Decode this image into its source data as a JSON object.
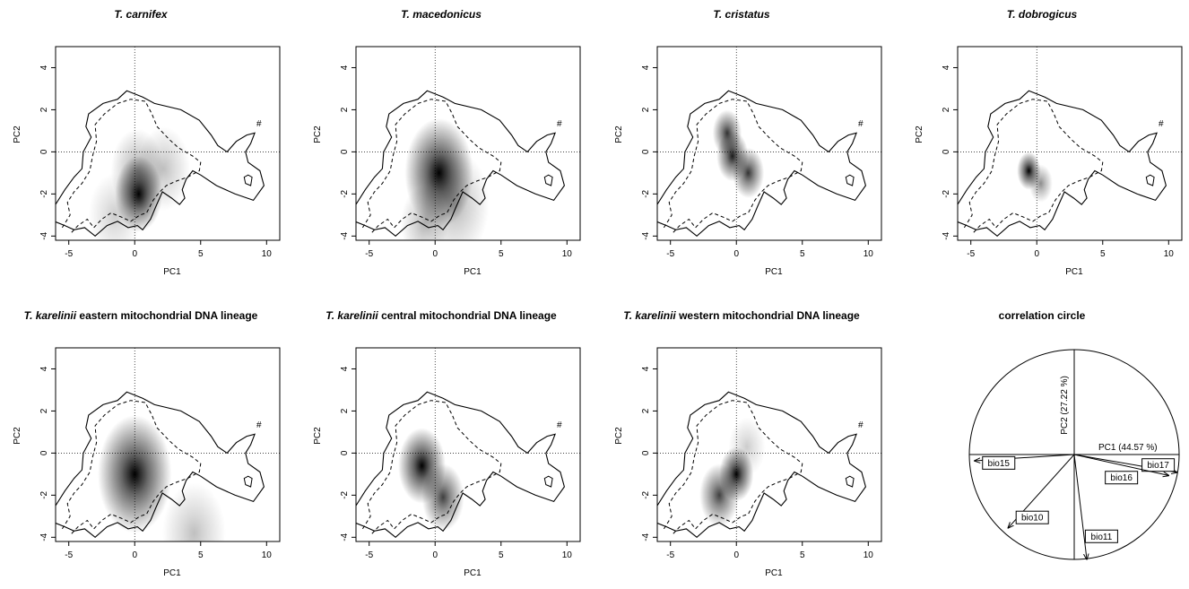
{
  "colors": {
    "ink": "#000000",
    "density": "#000000",
    "background": "#ffffff"
  },
  "axis_labels": {
    "x": "PC1",
    "y": "PC2"
  },
  "chart_data": [
    {
      "type": "heatmap",
      "title_italic": "T. carnifex",
      "title_rest": "",
      "xlabel": "PC1",
      "ylabel": "PC2",
      "xlim": [
        -6,
        11
      ],
      "ylim": [
        -4.2,
        5
      ],
      "xticks": [
        "-5",
        "0",
        "5",
        "10"
      ],
      "yticks": [
        "-4",
        "-2",
        "0",
        "2",
        "4"
      ],
      "reference_lines": {
        "x": 0,
        "y": 0,
        "style": "dotted"
      },
      "density_peaks": [
        {
          "x": 0.3,
          "y": -2.0,
          "spread": 0.9,
          "weight": 1.0
        },
        {
          "x": 0.2,
          "y": -0.9,
          "spread": 1.0,
          "weight": 0.35
        },
        {
          "x": 2.2,
          "y": -0.8,
          "spread": 1.0,
          "weight": 0.25
        },
        {
          "x": -1.5,
          "y": -3.0,
          "spread": 1.0,
          "weight": 0.2
        }
      ]
    },
    {
      "type": "heatmap",
      "title_italic": "T. macedonicus",
      "title_rest": "",
      "xlabel": "PC1",
      "ylabel": "PC2",
      "xlim": [
        -6,
        11
      ],
      "ylim": [
        -4.2,
        5
      ],
      "xticks": [
        "-5",
        "0",
        "5",
        "10"
      ],
      "yticks": [
        "-4",
        "-2",
        "0",
        "2",
        "4"
      ],
      "reference_lines": {
        "x": 0,
        "y": 0,
        "style": "dotted"
      },
      "density_peaks": [
        {
          "x": 0.3,
          "y": -1.0,
          "spread": 1.3,
          "weight": 1.0
        },
        {
          "x": 1.5,
          "y": -2.5,
          "spread": 1.3,
          "weight": 0.3
        },
        {
          "x": -0.8,
          "y": -3.4,
          "spread": 0.9,
          "weight": 0.3
        }
      ]
    },
    {
      "type": "heatmap",
      "title_italic": "T. cristatus",
      "title_rest": "",
      "xlabel": "PC1",
      "ylabel": "PC2",
      "xlim": [
        -6,
        11
      ],
      "ylim": [
        -4.2,
        5
      ],
      "xticks": [
        "-5",
        "0",
        "5",
        "10"
      ],
      "yticks": [
        "-4",
        "-2",
        "0",
        "2",
        "4"
      ],
      "reference_lines": {
        "x": 0,
        "y": 0,
        "style": "dotted"
      },
      "density_peaks": [
        {
          "x": -0.7,
          "y": 0.9,
          "spread": 0.55,
          "weight": 0.8
        },
        {
          "x": -0.3,
          "y": -0.2,
          "spread": 0.6,
          "weight": 0.9
        },
        {
          "x": 0.9,
          "y": -1.0,
          "spread": 0.6,
          "weight": 0.8
        }
      ]
    },
    {
      "type": "heatmap",
      "title_italic": "T. dobrogicus",
      "title_rest": "",
      "xlabel": "PC1",
      "ylabel": "PC2",
      "xlim": [
        -6,
        11
      ],
      "ylim": [
        -4.2,
        5
      ],
      "xticks": [
        "-5",
        "0",
        "5",
        "10"
      ],
      "yticks": [
        "-4",
        "-2",
        "0",
        "2",
        "4"
      ],
      "reference_lines": {
        "x": 0,
        "y": 0,
        "style": "dotted"
      },
      "density_peaks": [
        {
          "x": -0.6,
          "y": -0.9,
          "spread": 0.45,
          "weight": 1.0
        },
        {
          "x": 0.3,
          "y": -1.5,
          "spread": 0.45,
          "weight": 0.45
        }
      ]
    },
    {
      "type": "heatmap",
      "title_italic": "T. karelinii",
      "title_rest": " eastern mitochondrial DNA lineage",
      "xlabel": "PC1",
      "ylabel": "PC2",
      "xlim": [
        -6,
        11
      ],
      "ylim": [
        -4.2,
        5
      ],
      "xticks": [
        "-5",
        "0",
        "5",
        "10"
      ],
      "yticks": [
        "-4",
        "-2",
        "0",
        "2",
        "4"
      ],
      "reference_lines": {
        "x": 0,
        "y": 0,
        "style": "dotted"
      },
      "density_peaks": [
        {
          "x": 0.0,
          "y": -1.0,
          "spread": 1.4,
          "weight": 1.0
        },
        {
          "x": 4.5,
          "y": -3.8,
          "spread": 1.2,
          "weight": 0.25
        }
      ]
    },
    {
      "type": "heatmap",
      "title_italic": "T. karelinii",
      "title_rest": " central mitochondrial DNA lineage",
      "xlabel": "PC1",
      "ylabel": "PC2",
      "xlim": [
        -6,
        11
      ],
      "ylim": [
        -4.2,
        5
      ],
      "xticks": [
        "-5",
        "0",
        "5",
        "10"
      ],
      "yticks": [
        "-4",
        "-2",
        "0",
        "2",
        "4"
      ],
      "reference_lines": {
        "x": 0,
        "y": 0,
        "style": "dotted"
      },
      "density_peaks": [
        {
          "x": -1.0,
          "y": -0.6,
          "spread": 0.9,
          "weight": 1.0
        },
        {
          "x": 0.6,
          "y": -2.1,
          "spread": 0.8,
          "weight": 0.75
        }
      ]
    },
    {
      "type": "heatmap",
      "title_italic": "T. karelinii",
      "title_rest": " western mitochondrial DNA lineage",
      "xlabel": "PC1",
      "ylabel": "PC2",
      "xlim": [
        -6,
        11
      ],
      "ylim": [
        -4.2,
        5
      ],
      "xticks": [
        "-5",
        "0",
        "5",
        "10"
      ],
      "yticks": [
        "-4",
        "-2",
        "0",
        "2",
        "4"
      ],
      "reference_lines": {
        "x": 0,
        "y": 0,
        "style": "dotted"
      },
      "density_peaks": [
        {
          "x": 0.0,
          "y": -1.0,
          "spread": 0.65,
          "weight": 1.0
        },
        {
          "x": -1.3,
          "y": -2.0,
          "spread": 0.75,
          "weight": 0.75
        },
        {
          "x": 0.8,
          "y": 0.3,
          "spread": 0.7,
          "weight": 0.2
        }
      ]
    },
    {
      "type": "scatter",
      "subtype": "correlation-circle",
      "title": "correlation circle",
      "xlabel": "PC1 (44.57 %)",
      "ylabel": "PC2 (27.22 %)",
      "vectors": [
        {
          "name": "bio15",
          "x": -0.95,
          "y": -0.06
        },
        {
          "name": "bio17",
          "x": 0.98,
          "y": -0.17
        },
        {
          "name": "bio16",
          "x": 0.9,
          "y": -0.2
        },
        {
          "name": "bio10",
          "x": -0.63,
          "y": -0.7
        },
        {
          "name": "bio11",
          "x": 0.12,
          "y": -1.0
        }
      ]
    }
  ]
}
